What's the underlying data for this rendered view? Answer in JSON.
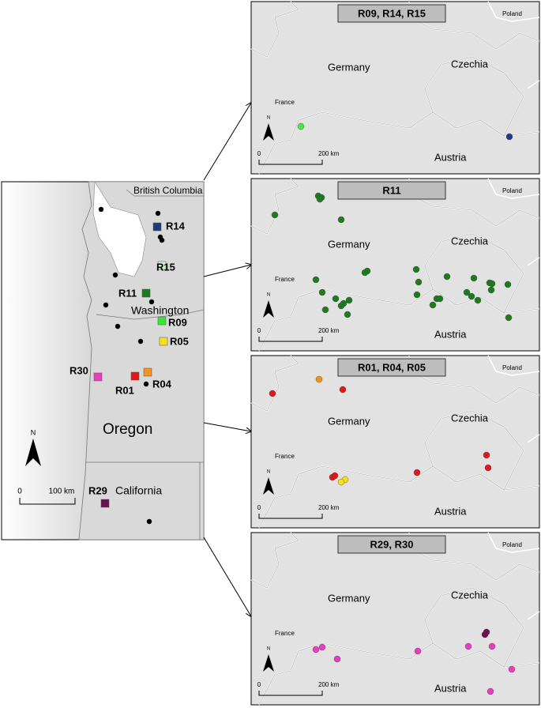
{
  "left_map": {
    "regions": [
      "British Columbia",
      "Washington",
      "Oregon",
      "California"
    ],
    "sites": [
      "R14",
      "R15",
      "R11",
      "R09",
      "R05",
      "R30",
      "R01",
      "R04",
      "R29"
    ],
    "north": "N",
    "scale": {
      "start": "0",
      "end": "100 km"
    }
  },
  "panels": [
    {
      "title": "R09, R14, R15"
    },
    {
      "title": "R11"
    },
    {
      "title": "R01, R04, R05"
    },
    {
      "title": "R29, R30"
    }
  ],
  "panel_labels": {
    "germany": "Germany",
    "czechia": "Czechia",
    "austria": "Austria",
    "france": "France",
    "poland": "Poland",
    "north": "N",
    "scale_start": "0",
    "scale_end": "200 km"
  }
}
